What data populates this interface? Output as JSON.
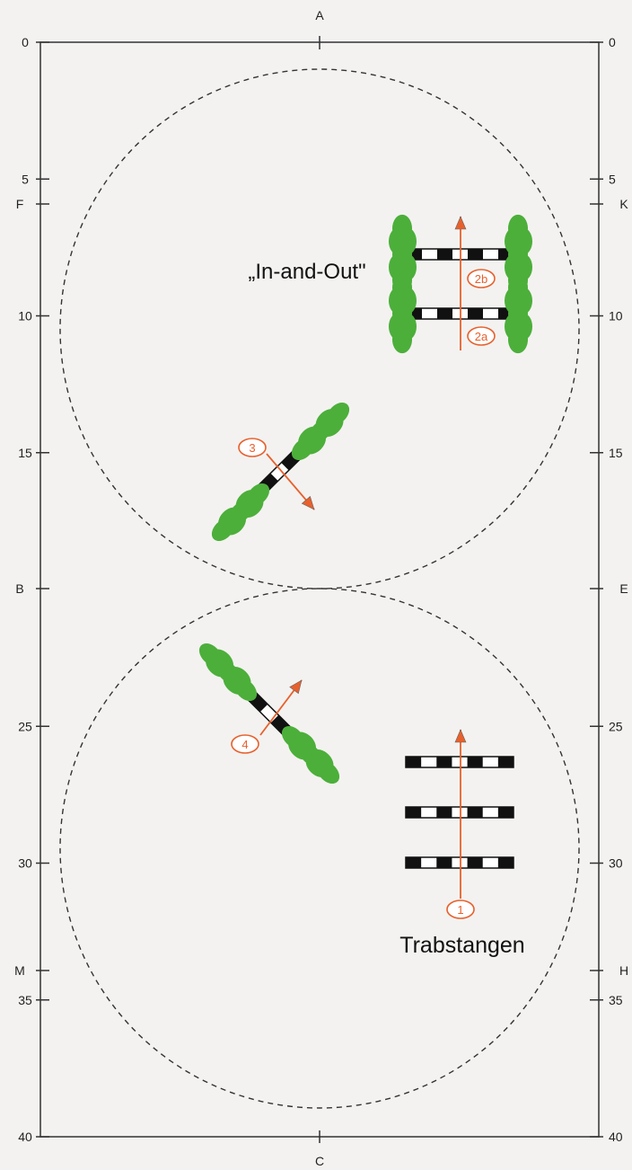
{
  "arena": {
    "y_ticks": [
      "0",
      "5",
      "10",
      "15",
      "20",
      "25",
      "30",
      "35",
      "40"
    ],
    "left_tick_labels": [
      "0",
      "5",
      "10",
      "15",
      "25",
      "30",
      "35",
      "40"
    ],
    "right_tick_labels": [
      "0",
      "5",
      "10",
      "15",
      "25",
      "30",
      "35",
      "40"
    ],
    "left_letters": [
      "F",
      "B",
      "M"
    ],
    "right_letters": [
      "K",
      "E",
      "H"
    ],
    "top_letter": "A",
    "bottom_letter": "C"
  },
  "labels": {
    "in_and_out": "„In-and-Out\"",
    "trot_poles": "Trabstangen"
  },
  "markers": {
    "m1": "1",
    "m2a": "2a",
    "m2b": "2b",
    "m3": "3",
    "m4": "4"
  },
  "colors": {
    "arrow": "#e8602c",
    "pole_dark": "#111111",
    "pole_light": "#ffffff",
    "bush": "#4caf3a",
    "circle": "#333333",
    "border": "#333333"
  },
  "icons": [
    "bush-icon",
    "arrow-icon",
    "pole-icon"
  ]
}
